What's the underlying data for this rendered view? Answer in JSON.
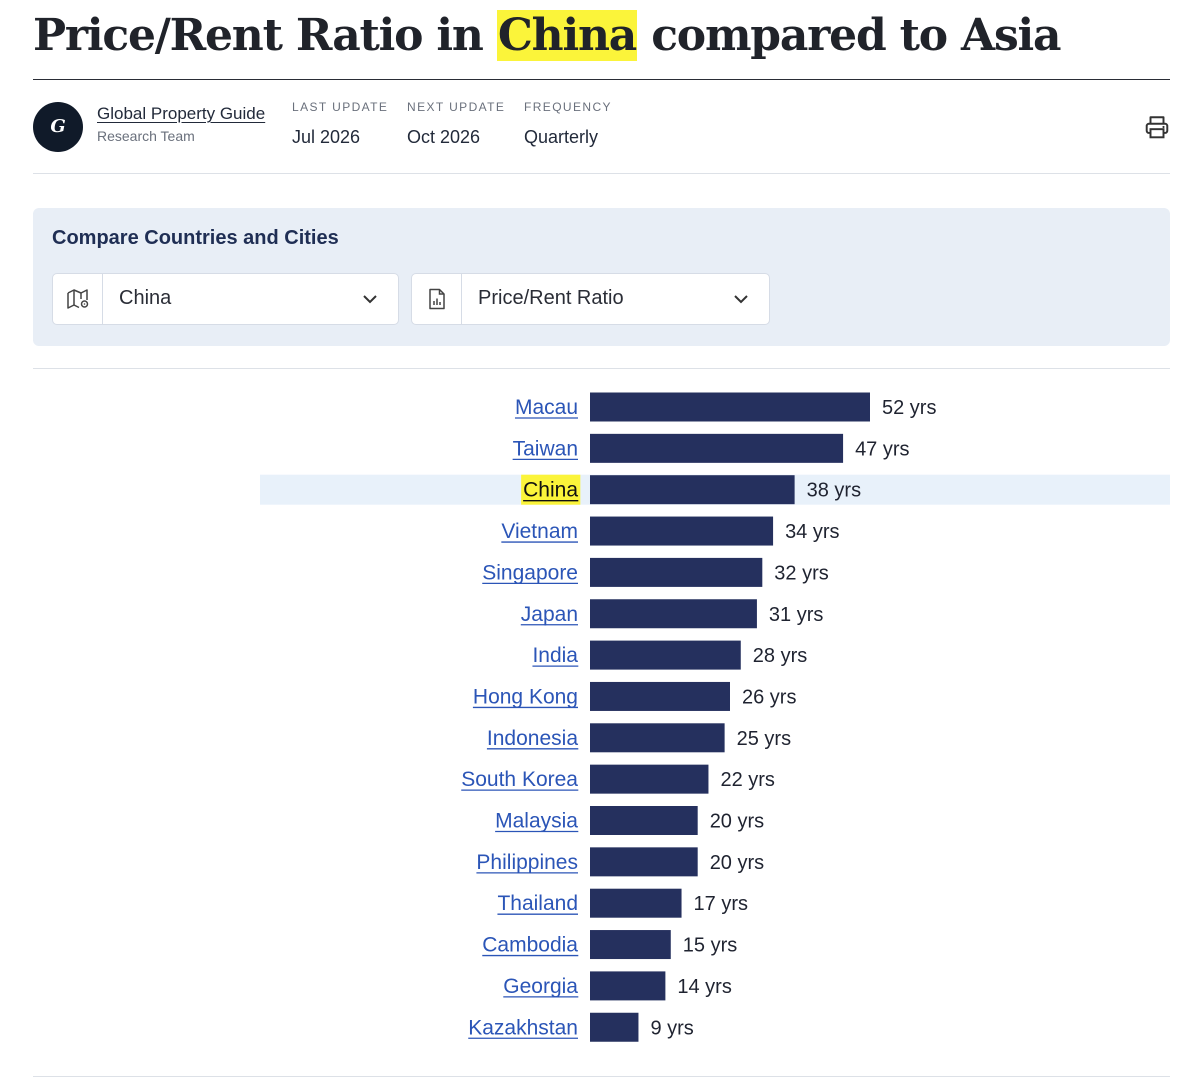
{
  "header": {
    "title_before": "Price/Rent Ratio in ",
    "title_highlight": "China",
    "title_after": " compared to Asia"
  },
  "meta": {
    "avatar_letter": "G",
    "author_name": "Global Property Guide",
    "author_team": "Research Team",
    "last_update_label": "LAST UPDATE",
    "last_update_value": "Jul 2026",
    "next_update_label": "NEXT UPDATE",
    "next_update_value": "Oct 2026",
    "frequency_label": "FREQUENCY",
    "frequency_value": "Quarterly",
    "print_icon": "printer-icon"
  },
  "compare": {
    "title": "Compare Countries and Cities",
    "country_select": {
      "icon": "map-pin-icon",
      "value": "China"
    },
    "metric_select": {
      "icon": "chart-document-icon",
      "value": "Price/Rent Ratio"
    }
  },
  "colors": {
    "bar": "#25305e",
    "link": "#2b55b7",
    "highlight": "#fbf43a",
    "active_row": "#e8f1fa"
  },
  "chart_data": {
    "type": "bar",
    "orientation": "horizontal",
    "highlight_category": "China",
    "value_suffix": " yrs",
    "categories": [
      "Macau",
      "Taiwan",
      "China",
      "Vietnam",
      "Singapore",
      "Japan",
      "India",
      "Hong Kong",
      "Indonesia",
      "South Korea",
      "Malaysia",
      "Philippines",
      "Thailand",
      "Cambodia",
      "Georgia",
      "Kazakhstan"
    ],
    "values": [
      52,
      47,
      38,
      34,
      32,
      31,
      28,
      26,
      25,
      22,
      20,
      20,
      17,
      15,
      14,
      9
    ]
  }
}
